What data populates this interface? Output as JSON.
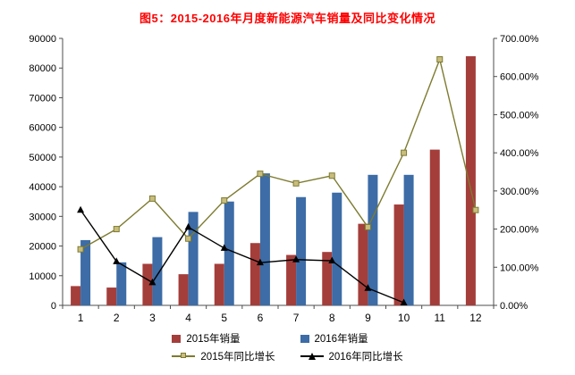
{
  "title": "图5：2015-2016年月度新能源汽车销量及同比变化情况",
  "colors": {
    "title": "#FF0000",
    "axis": "#4D4D4D",
    "text": "#000000",
    "bar_2015": "#A43E3B",
    "bar_2016": "#3D6CA6",
    "line_2015": "#7D7B2F",
    "line_2015_marker_fill": "#C9BD7E",
    "line_2016": "#000000"
  },
  "chart_data": {
    "type": "combo-bar-line",
    "title": "图5：2015-2016年月度新能源汽车销量及同比变化情况",
    "categories": [
      "1",
      "2",
      "3",
      "4",
      "5",
      "6",
      "7",
      "8",
      "9",
      "10",
      "11",
      "12"
    ],
    "left_axis": {
      "label": "",
      "min": 0,
      "max": 90000,
      "step": 10000,
      "ticks": [
        "0",
        "10000",
        "20000",
        "30000",
        "40000",
        "50000",
        "60000",
        "70000",
        "80000",
        "90000"
      ]
    },
    "right_axis": {
      "label": "",
      "min": 0,
      "max": 700,
      "step": 100,
      "ticks": [
        "0.00%",
        "100.00%",
        "200.00%",
        "300.00%",
        "400.00%",
        "500.00%",
        "600.00%",
        "700.00%"
      ]
    },
    "gridlines": false,
    "legend_position": "bottom",
    "series": [
      {
        "name": "2015年销量",
        "kind": "bar",
        "axis": "left",
        "values": [
          6500,
          6000,
          14000,
          10500,
          14000,
          21000,
          17000,
          18000,
          27500,
          34000,
          52500,
          84000
        ]
      },
      {
        "name": "2016年销量",
        "kind": "bar",
        "axis": "left",
        "values": [
          22000,
          14500,
          23000,
          31500,
          35000,
          44500,
          36500,
          38000,
          44000,
          44000,
          null,
          null
        ]
      },
      {
        "name": "2015年同比增长",
        "kind": "line",
        "axis": "right",
        "marker": "square",
        "values": [
          147,
          200,
          280,
          175,
          275,
          345,
          320,
          340,
          205,
          400,
          645,
          250
        ]
      },
      {
        "name": "2016年同比增长",
        "kind": "line",
        "axis": "right",
        "marker": "triangle",
        "values": [
          250,
          115,
          60,
          205,
          150,
          112,
          120,
          117,
          45,
          7,
          null,
          null
        ]
      }
    ]
  }
}
